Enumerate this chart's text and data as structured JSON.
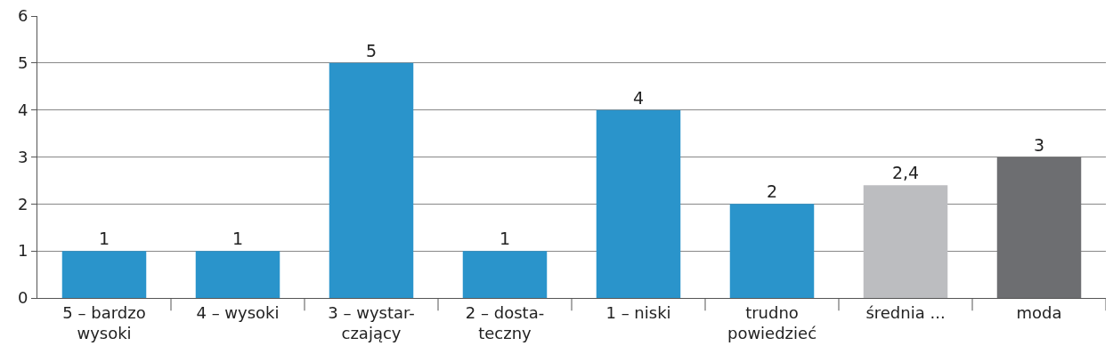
{
  "chart_data": {
    "type": "bar",
    "categories": [
      "5 – bardzo\nwysoki",
      "4 – wysoki",
      "3 – wystar-\nczający",
      "2 – dosta-\nteczny",
      "1 – niski",
      "trudno\npowiedzieć",
      "średnia ...",
      "moda"
    ],
    "values": [
      1,
      1,
      5,
      1,
      4,
      2,
      2.4,
      3
    ],
    "colors": [
      "#2a94cb",
      "#2a94cb",
      "#2a94cb",
      "#2a94cb",
      "#2a94cb",
      "#2a94cb",
      "#bcbdc0",
      "#6d6e71"
    ],
    "value_labels": [
      "1",
      "1",
      "5",
      "1",
      "4",
      "2",
      "2,4",
      "3"
    ],
    "ylim": [
      0,
      6
    ],
    "yticks": [
      0,
      1,
      2,
      3,
      4,
      5,
      6
    ],
    "grid": "y"
  }
}
